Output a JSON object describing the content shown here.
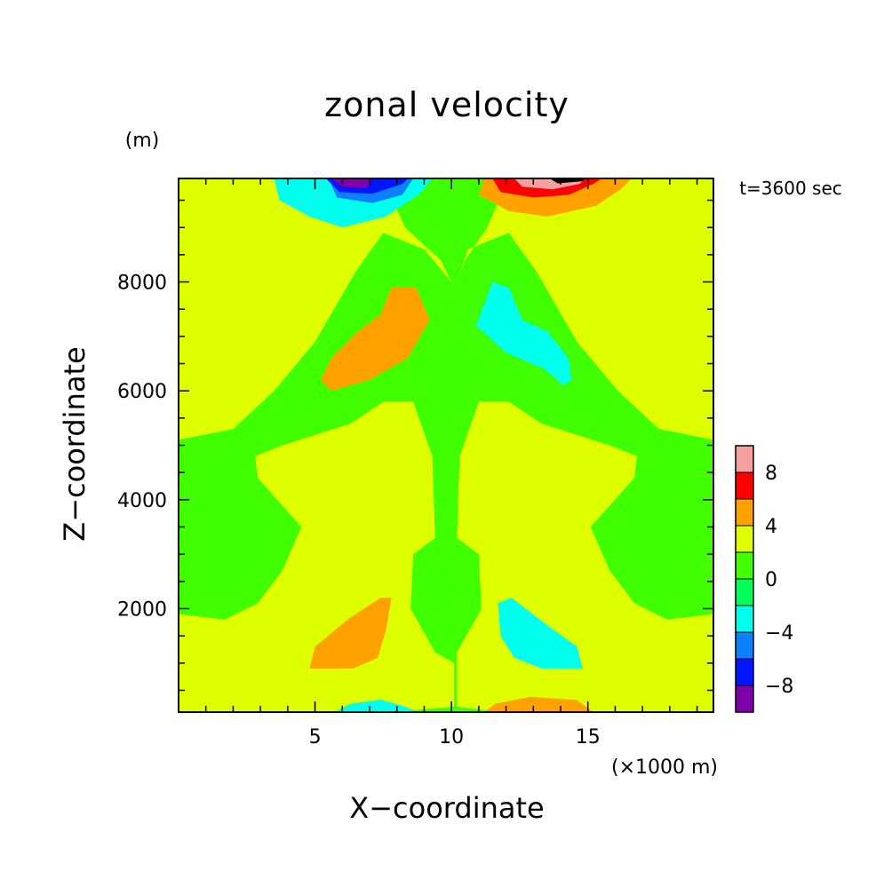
{
  "chart_data": {
    "type": "heatmap",
    "title": "zonal velocity",
    "annotation": "t=3600 sec",
    "xlabel": "X−coordinate",
    "ylabel": "Z−coordinate",
    "x_unit": "(×1000 m)",
    "y_unit": "(m)",
    "xlim": [
      0,
      19.6
    ],
    "ylim": [
      100,
      9900
    ],
    "x_ticks": [
      5,
      10,
      15
    ],
    "x_tick_labels": [
      "5",
      "10",
      "15"
    ],
    "y_ticks": [
      2000,
      4000,
      6000,
      8000
    ],
    "y_tick_labels": [
      "2000",
      "4000",
      "6000",
      "8000"
    ],
    "colorbar": {
      "levels": [
        -10,
        -8,
        -6,
        -4,
        -2,
        0,
        2,
        4,
        6,
        8,
        10
      ],
      "colors": [
        "#7f00a8",
        "#0016ff",
        "#0c80ff",
        "#00ffec",
        "#00ff58",
        "#3fff00",
        "#deff00",
        "#ffa200",
        "#ff0000",
        "#f7a0a0"
      ],
      "tick_labels": [
        "−8",
        "−4",
        "0",
        "4",
        "8"
      ],
      "tick_values": [
        -8,
        -4,
        0,
        4,
        8
      ]
    },
    "background_level": 0,
    "regions": [
      {
        "level": 1,
        "shape": [
          [
            0,
            9900
          ],
          [
            0,
            5100
          ],
          [
            2,
            5300
          ],
          [
            3.5,
            6000
          ],
          [
            5,
            6900
          ],
          [
            6.5,
            8200
          ],
          [
            7.5,
            8900
          ],
          [
            9,
            8600
          ],
          [
            10,
            8000
          ],
          [
            9.6,
            8400
          ],
          [
            8.3,
            9000
          ],
          [
            7.5,
            9900
          ]
        ]
      },
      {
        "level": 1,
        "shape": [
          [
            19.6,
            9900
          ],
          [
            19.6,
            5100
          ],
          [
            17.6,
            5300
          ],
          [
            16.1,
            6000
          ],
          [
            14.6,
            6900
          ],
          [
            13.1,
            8200
          ],
          [
            12.1,
            8900
          ],
          [
            10.6,
            8600
          ],
          [
            10.2,
            8000
          ],
          [
            10.5,
            8400
          ],
          [
            11.3,
            9000
          ],
          [
            12.1,
            9900
          ]
        ]
      },
      {
        "level": 1,
        "shape": [
          [
            0,
            1900
          ],
          [
            1.7,
            1800
          ],
          [
            2.9,
            2100
          ],
          [
            3.8,
            2700
          ],
          [
            4.5,
            3500
          ],
          [
            2.9,
            4400
          ],
          [
            2.8,
            4800
          ],
          [
            3.8,
            5000
          ],
          [
            6.3,
            5400
          ],
          [
            7.5,
            5800
          ],
          [
            8.6,
            5800
          ],
          [
            9.3,
            4800
          ],
          [
            9.4,
            3300
          ],
          [
            8.6,
            3000
          ],
          [
            8.5,
            2000
          ],
          [
            9.4,
            1200
          ],
          [
            10.1,
            1000
          ],
          [
            10.1,
            200
          ],
          [
            7.8,
            100
          ],
          [
            0,
            100
          ]
        ]
      },
      {
        "level": 1,
        "shape": [
          [
            19.6,
            1900
          ],
          [
            17.9,
            1800
          ],
          [
            16.7,
            2100
          ],
          [
            15.8,
            2700
          ],
          [
            15.1,
            3500
          ],
          [
            16.7,
            4400
          ],
          [
            16.8,
            4800
          ],
          [
            15.8,
            5000
          ],
          [
            13.3,
            5400
          ],
          [
            12.1,
            5800
          ],
          [
            11,
            5800
          ],
          [
            10.3,
            4800
          ],
          [
            10.2,
            3300
          ],
          [
            11,
            3000
          ],
          [
            11.1,
            2000
          ],
          [
            10.2,
            1200
          ],
          [
            10.2,
            1000
          ],
          [
            10.2,
            200
          ],
          [
            11.8,
            100
          ],
          [
            19.6,
            100
          ]
        ]
      },
      {
        "level": 2,
        "shape": [
          [
            5.2,
            6200
          ],
          [
            5.6,
            6600
          ],
          [
            6.6,
            7100
          ],
          [
            7.4,
            7400
          ],
          [
            7.8,
            7900
          ],
          [
            8.7,
            7900
          ],
          [
            9.2,
            7300
          ],
          [
            8.4,
            6600
          ],
          [
            7,
            6200
          ],
          [
            5.6,
            6000
          ]
        ]
      },
      {
        "level": 2,
        "shape": [
          [
            4.8,
            900
          ],
          [
            5,
            1300
          ],
          [
            6.2,
            1800
          ],
          [
            7.4,
            2200
          ],
          [
            7.8,
            2200
          ],
          [
            7.6,
            1600
          ],
          [
            7.3,
            1100
          ],
          [
            6.4,
            900
          ]
        ]
      },
      {
        "level": 2,
        "shape": [
          [
            11.2,
            9900
          ],
          [
            11,
            9600
          ],
          [
            12.1,
            9300
          ],
          [
            13.5,
            9200
          ],
          [
            15.3,
            9400
          ],
          [
            16.2,
            9700
          ],
          [
            16.6,
            9900
          ]
        ]
      },
      {
        "level": 2,
        "shape": [
          [
            11.2,
            100
          ],
          [
            11.6,
            250
          ],
          [
            12.9,
            380
          ],
          [
            14.6,
            320
          ],
          [
            15.2,
            100
          ]
        ]
      },
      {
        "level": 3,
        "shape": [
          [
            11.5,
            9900
          ],
          [
            11.8,
            9650
          ],
          [
            13,
            9550
          ],
          [
            14.3,
            9600
          ],
          [
            15.2,
            9800
          ],
          [
            15.5,
            9900
          ]
        ]
      },
      {
        "level": 4,
        "shape": [
          [
            12.3,
            9900
          ],
          [
            12.6,
            9750
          ],
          [
            13.7,
            9700
          ],
          [
            14.7,
            9800
          ],
          [
            14.9,
            9900
          ]
        ]
      },
      {
        "level": 5,
        "shape": [
          [
            13.6,
            9900
          ],
          [
            13.9,
            9810
          ],
          [
            14.8,
            9850
          ],
          [
            14.9,
            9900
          ]
        ]
      },
      {
        "level": -2,
        "shape": [
          [
            14.4,
            6200
          ],
          [
            14.3,
            6600
          ],
          [
            13.5,
            7100
          ],
          [
            12.6,
            7300
          ],
          [
            12.1,
            7900
          ],
          [
            11.5,
            8000
          ],
          [
            10.9,
            7200
          ],
          [
            12,
            6700
          ],
          [
            13.4,
            6400
          ],
          [
            14.1,
            6100
          ]
        ]
      },
      {
        "level": -2,
        "shape": [
          [
            14.8,
            900
          ],
          [
            14.6,
            1300
          ],
          [
            13.5,
            1700
          ],
          [
            12.2,
            2200
          ],
          [
            11.7,
            2100
          ],
          [
            11.8,
            1500
          ],
          [
            12.3,
            1100
          ],
          [
            13.3,
            900
          ]
        ]
      },
      {
        "level": -2,
        "shape": [
          [
            3.5,
            9900
          ],
          [
            3.7,
            9500
          ],
          [
            4.8,
            9200
          ],
          [
            6,
            9000
          ],
          [
            7.6,
            9200
          ],
          [
            8.8,
            9600
          ],
          [
            9.3,
            9900
          ]
        ]
      },
      {
        "level": -2,
        "shape": [
          [
            5.7,
            100
          ],
          [
            6.3,
            250
          ],
          [
            7.4,
            330
          ],
          [
            8.3,
            200
          ],
          [
            8.8,
            100
          ]
        ]
      },
      {
        "level": -3,
        "shape": [
          [
            5.5,
            9900
          ],
          [
            5.8,
            9550
          ],
          [
            7.1,
            9450
          ],
          [
            8.2,
            9600
          ],
          [
            8.6,
            9900
          ]
        ]
      },
      {
        "level": -4,
        "shape": [
          [
            5.4,
            9900
          ],
          [
            5.9,
            9650
          ],
          [
            7.1,
            9620
          ],
          [
            8.2,
            9800
          ],
          [
            8.4,
            9900
          ]
        ]
      },
      {
        "level": -5,
        "shape": [
          [
            5.6,
            9900
          ],
          [
            6,
            9750
          ],
          [
            6.9,
            9720
          ],
          [
            7.1,
            9900
          ]
        ]
      }
    ]
  }
}
